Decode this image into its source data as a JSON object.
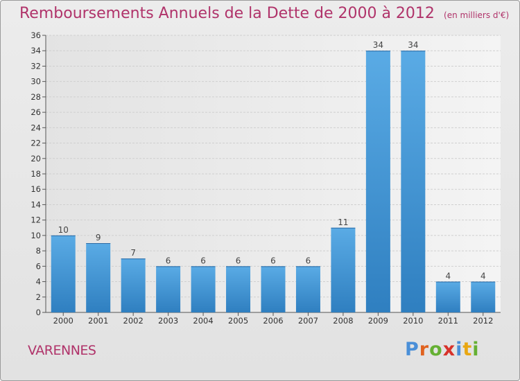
{
  "title": "Remboursements Annuels de la Dette de 2000 à 2012",
  "unit_note": "(en milliers d'€)",
  "town": "VARENNES",
  "logo": "Proxiti",
  "colors": {
    "bar": "#5aabe5",
    "bar_dark": "#2f7fc0",
    "text_accent": "#b0336a"
  },
  "chart_data": {
    "type": "bar",
    "categories": [
      "2000",
      "2001",
      "2002",
      "2003",
      "2004",
      "2005",
      "2006",
      "2007",
      "2008",
      "2009",
      "2010",
      "2011",
      "2012"
    ],
    "values": [
      10,
      9,
      7,
      6,
      6,
      6,
      6,
      6,
      11,
      34,
      34,
      4,
      4
    ],
    "title": "Remboursements Annuels de la Dette de 2000 à 2012",
    "xlabel": "",
    "ylabel": "",
    "ylim": [
      0,
      36
    ],
    "yticks": [
      0,
      2,
      4,
      6,
      8,
      10,
      12,
      14,
      16,
      18,
      20,
      22,
      24,
      26,
      28,
      30,
      32,
      34,
      36
    ],
    "grid": true,
    "data_labels": true
  }
}
